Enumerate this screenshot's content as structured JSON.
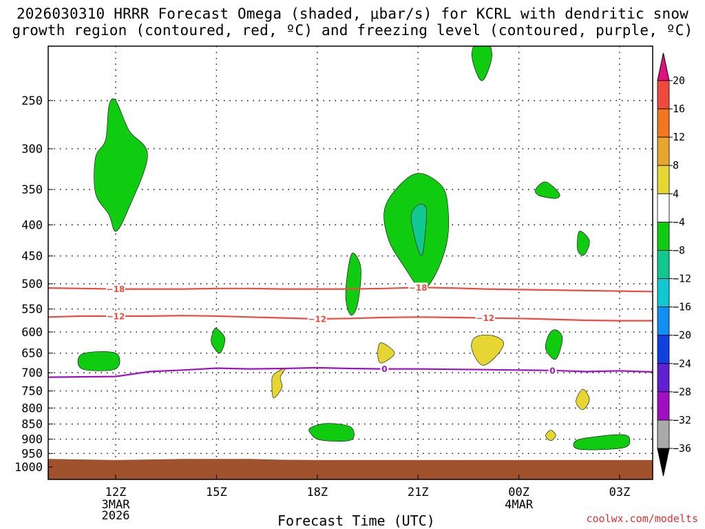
{
  "title": "2026030310 HRRR Forecast Omega (shaded, μbar/s) for KCRL with dendritic snow\ngrowth region (contoured, red, ºC) and freezing level (contoured, purple, ºC)",
  "credit": "coolwx.com/modelts",
  "chart_data": {
    "type": "contour",
    "title": "2026030310 HRRR Forecast Omega (shaded, μbar/s) for KCRL with dendritic snow growth region (contoured, red, ºC) and freezing level (contoured, purple, ºC)",
    "xlabel": "Forecast Time (UTC)",
    "ylabel": "",
    "x_unit": "hours UTC from 12Z 3 MAR 2026",
    "xlim": [
      -2,
      16
    ],
    "ylim": [
      1000,
      200
    ],
    "y_scale": "log-pressure",
    "grid": true,
    "x_ticks": [
      {
        "x": 0,
        "label": "12Z",
        "sub": [
          "3MAR",
          "2026"
        ]
      },
      {
        "x": 3,
        "label": "15Z",
        "sub": []
      },
      {
        "x": 6,
        "label": "18Z",
        "sub": []
      },
      {
        "x": 9,
        "label": "21Z",
        "sub": []
      },
      {
        "x": 12,
        "label": "00Z",
        "sub": [
          "4MAR"
        ]
      },
      {
        "x": 15,
        "label": "03Z",
        "sub": []
      }
    ],
    "y_ticks": [
      250,
      300,
      350,
      400,
      450,
      500,
      550,
      600,
      650,
      700,
      750,
      800,
      850,
      900,
      950,
      1000
    ],
    "colorbar": {
      "labels": [
        "20",
        "16",
        "12",
        "8",
        "4",
        "−4",
        "−8",
        "−12",
        "−16",
        "−20",
        "−24",
        "−28",
        "−32",
        "−36"
      ],
      "bands": [
        {
          "color": "#f04a3f"
        },
        {
          "color": "#f07820"
        },
        {
          "color": "#e8a630"
        },
        {
          "color": "#e6d633"
        },
        {
          "color": "#ffffff"
        },
        {
          "color": "#10cc10"
        },
        {
          "color": "#10c890"
        },
        {
          "color": "#10c8d0"
        },
        {
          "color": "#1090f0"
        },
        {
          "color": "#1040e0"
        },
        {
          "color": "#6020d0"
        },
        {
          "color": "#a010c0"
        },
        {
          "color": "#aaaaaa"
        }
      ],
      "top_color": "#e0107f",
      "bottom_color": "#000000"
    },
    "colors": {
      "green": "#10cc10",
      "teal": "#10c890",
      "yellow": "#e6d633",
      "terrain": "#a0522d",
      "dgz": "#f04a3f",
      "freezing": "#a010c0"
    },
    "omega_regions": [
      {
        "level": -4,
        "points": [
          [
            -0.2,
            255
          ],
          [
            0,
            250
          ],
          [
            0.4,
            280
          ],
          [
            0.95,
            308
          ],
          [
            0.35,
            380
          ],
          [
            0,
            410
          ],
          [
            -0.2,
            385
          ],
          [
            -0.6,
            355
          ],
          [
            -0.6,
            310
          ],
          [
            -0.3,
            290
          ]
        ]
      },
      {
        "level": -4,
        "points": [
          [
            -1,
            652
          ],
          [
            0,
            650
          ],
          [
            0,
            690
          ],
          [
            -1,
            690
          ]
        ]
      },
      {
        "level": -4,
        "points": [
          [
            3,
            592
          ],
          [
            3.25,
            615
          ],
          [
            3.1,
            650
          ],
          [
            2.85,
            625
          ],
          [
            2.9,
            600
          ]
        ]
      },
      {
        "level": -4,
        "points": [
          [
            5.8,
            862
          ],
          [
            6.3,
            848
          ],
          [
            7,
            860
          ],
          [
            7,
            903
          ],
          [
            6.1,
            903
          ],
          [
            5.8,
            880
          ]
        ]
      },
      {
        "level": -4,
        "points": [
          [
            7.05,
            445
          ],
          [
            7.3,
            472
          ],
          [
            7.2,
            540
          ],
          [
            7,
            563
          ],
          [
            6.85,
            530
          ],
          [
            6.9,
            480
          ]
        ]
      },
      {
        "level": -4,
        "points": [
          [
            8.9,
            330
          ],
          [
            9.7,
            345
          ],
          [
            9.9,
            380
          ],
          [
            9.85,
            430
          ],
          [
            9.5,
            485
          ],
          [
            9.1,
            510
          ],
          [
            8.6,
            470
          ],
          [
            8.1,
            420
          ],
          [
            8.05,
            370
          ]
        ]
      },
      {
        "level": -8,
        "points": [
          [
            9.05,
            370
          ],
          [
            9.25,
            378
          ],
          [
            9.2,
            420
          ],
          [
            9.1,
            450
          ],
          [
            8.9,
            420
          ],
          [
            8.8,
            385
          ]
        ]
      },
      {
        "level": -4,
        "points": [
          [
            10.9,
            194
          ],
          [
            11.2,
            210
          ],
          [
            10.9,
            232
          ],
          [
            10.6,
            210
          ]
        ]
      },
      {
        "level": -4,
        "points": [
          [
            12.8,
            340
          ],
          [
            13.2,
            355
          ],
          [
            13.1,
            362
          ],
          [
            12.6,
            358
          ],
          [
            12.5,
            350
          ]
        ]
      },
      {
        "level": -4,
        "points": [
          [
            13.8,
            410
          ],
          [
            14.1,
            425
          ],
          [
            13.95,
            448
          ],
          [
            13.75,
            440
          ]
        ]
      },
      {
        "level": -4,
        "points": [
          [
            13.1,
            595
          ],
          [
            13.3,
            615
          ],
          [
            13.1,
            665
          ],
          [
            12.8,
            640
          ],
          [
            12.9,
            605
          ]
        ]
      },
      {
        "level": -4,
        "points": [
          [
            14.4,
            890
          ],
          [
            15.1,
            885
          ],
          [
            15.3,
            900
          ],
          [
            15.1,
            930
          ],
          [
            13.8,
            935
          ],
          [
            13.7,
            905
          ]
        ]
      },
      {
        "level": 4,
        "points": [
          [
            5.05,
            688
          ],
          [
            4.9,
            712
          ],
          [
            4.95,
            740
          ],
          [
            4.7,
            770
          ],
          [
            4.65,
            730
          ],
          [
            4.7,
            705
          ]
        ]
      },
      {
        "level": 4,
        "points": [
          [
            7.9,
            625
          ],
          [
            8.3,
            650
          ],
          [
            7.9,
            675
          ],
          [
            7.8,
            650
          ]
        ]
      },
      {
        "level": 4,
        "points": [
          [
            11.2,
            608
          ],
          [
            11.55,
            625
          ],
          [
            11.3,
            660
          ],
          [
            10.9,
            680
          ],
          [
            10.6,
            640
          ],
          [
            10.7,
            612
          ]
        ]
      },
      {
        "level": 4,
        "points": [
          [
            13.9,
            745
          ],
          [
            14.1,
            775
          ],
          [
            13.9,
            805
          ],
          [
            13.7,
            780
          ]
        ]
      },
      {
        "level": 4,
        "points": [
          [
            12.95,
            870
          ],
          [
            13.1,
            888
          ],
          [
            12.95,
            905
          ],
          [
            12.8,
            888
          ]
        ]
      }
    ],
    "contours": [
      {
        "name": "-18",
        "kind": "dgz",
        "label": "−18",
        "label_at": [
          0,
          9
        ],
        "points": [
          [
            -2,
            508
          ],
          [
            -1,
            509
          ],
          [
            0,
            510
          ],
          [
            1,
            510
          ],
          [
            2,
            510
          ],
          [
            3,
            509
          ],
          [
            4,
            509
          ],
          [
            5,
            510
          ],
          [
            6,
            510
          ],
          [
            7,
            510
          ],
          [
            8,
            509
          ],
          [
            9,
            507
          ],
          [
            10,
            508
          ],
          [
            11,
            510
          ],
          [
            12,
            511
          ],
          [
            13,
            512
          ],
          [
            14,
            513
          ],
          [
            15,
            514
          ],
          [
            16,
            515
          ]
        ]
      },
      {
        "name": "-12",
        "kind": "dgz",
        "label": "−12",
        "label_at": [
          0,
          6,
          11
        ],
        "points": [
          [
            -2,
            567
          ],
          [
            -1,
            565
          ],
          [
            0,
            565
          ],
          [
            1,
            565
          ],
          [
            2,
            564
          ],
          [
            3,
            565
          ],
          [
            4,
            567
          ],
          [
            5,
            569
          ],
          [
            6,
            571
          ],
          [
            7,
            570
          ],
          [
            8,
            568
          ],
          [
            9,
            567
          ],
          [
            10,
            568
          ],
          [
            11,
            569
          ],
          [
            12,
            570
          ],
          [
            13,
            572
          ],
          [
            14,
            574
          ],
          [
            15,
            575
          ],
          [
            16,
            575
          ]
        ]
      },
      {
        "name": "0",
        "kind": "freezing",
        "label": "0",
        "label_at": [
          8,
          13
        ],
        "points": [
          [
            -2,
            712
          ],
          [
            -1,
            711
          ],
          [
            0,
            710
          ],
          [
            1,
            697
          ],
          [
            2,
            693
          ],
          [
            3,
            688
          ],
          [
            4,
            690
          ],
          [
            5,
            689
          ],
          [
            6,
            687
          ],
          [
            7,
            689
          ],
          [
            8,
            690
          ],
          [
            9,
            690
          ],
          [
            10,
            691
          ],
          [
            11,
            692
          ],
          [
            12,
            693
          ],
          [
            13,
            694
          ],
          [
            14,
            697
          ],
          [
            15,
            695
          ],
          [
            16,
            698
          ]
        ]
      }
    ],
    "terrain": {
      "surface_pressure": [
        [
          -2,
          970
        ],
        [
          0,
          974
        ],
        [
          1,
          972
        ],
        [
          2,
          970
        ],
        [
          4,
          970
        ],
        [
          5,
          973
        ],
        [
          6,
          974
        ],
        [
          8,
          974
        ],
        [
          10,
          974
        ],
        [
          12,
          974
        ],
        [
          14,
          974
        ],
        [
          16,
          974
        ]
      ]
    }
  }
}
